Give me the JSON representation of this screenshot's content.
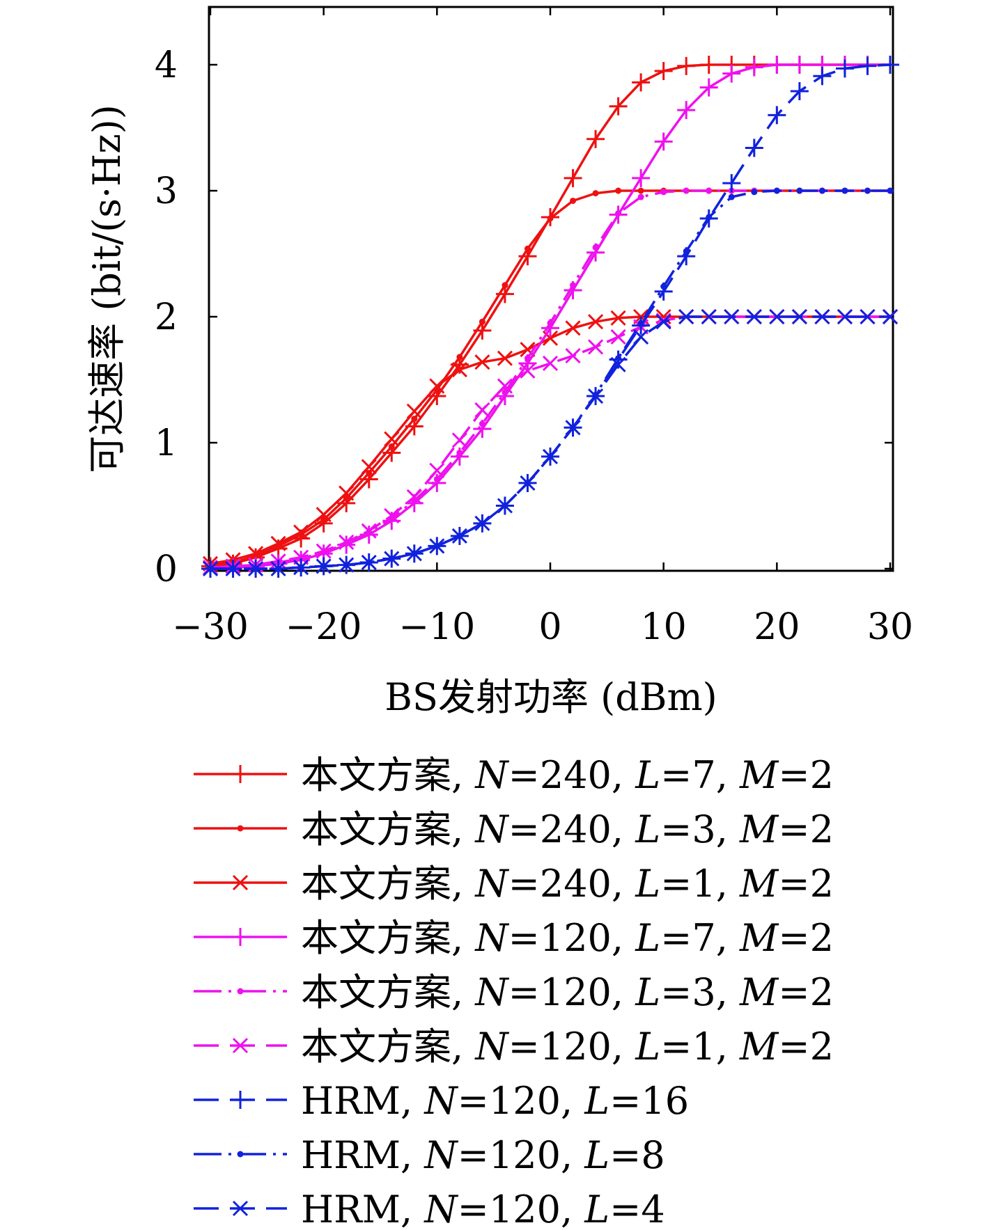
{
  "chart_data": {
    "type": "line",
    "xlabel": "BS发射功率 (dBm)",
    "ylabel": "可达速率 (bit/(s·Hz))",
    "xlim": [
      -30,
      30
    ],
    "ylim": [
      0,
      4.5
    ],
    "xticks": [
      -30,
      -20,
      -10,
      0,
      10,
      20,
      30
    ],
    "xtick_labels": [
      "−30",
      "−20",
      "−10",
      "0",
      "10",
      "20",
      "30"
    ],
    "yticks": [
      0,
      1,
      2,
      3,
      4
    ],
    "ytick_labels": [
      "0",
      "1",
      "2",
      "3",
      "4"
    ],
    "grid": false,
    "legend_position": "below",
    "x": [
      -30,
      -28,
      -26,
      -24,
      -22,
      -20,
      -18,
      -16,
      -14,
      -12,
      -10,
      -8,
      -6,
      -4,
      -2,
      0,
      2,
      4,
      6,
      8,
      10,
      12,
      14,
      16,
      18,
      20,
      22,
      24,
      26,
      28,
      30
    ],
    "series": [
      {
        "name": "本文方案, N=240, L=7, M=2",
        "color": "#ee1111",
        "dash": "solid",
        "marker": "plus",
        "values": [
          0.02,
          0.04,
          0.09,
          0.16,
          0.24,
          0.36,
          0.52,
          0.71,
          0.92,
          1.13,
          1.37,
          1.62,
          1.89,
          2.18,
          2.48,
          2.79,
          3.1,
          3.41,
          3.67,
          3.86,
          3.95,
          3.99,
          4.0,
          4.0,
          4.0,
          4.0,
          4.0,
          4.0,
          4.0,
          4.0,
          4.0
        ]
      },
      {
        "name": "本文方案, N=240, L=3, M=2",
        "color": "#ee1111",
        "dash": "solid",
        "marker": "dot",
        "values": [
          0.03,
          0.05,
          0.1,
          0.18,
          0.27,
          0.39,
          0.56,
          0.76,
          0.97,
          1.19,
          1.42,
          1.68,
          1.96,
          2.25,
          2.54,
          2.78,
          2.92,
          2.98,
          3.0,
          3.0,
          3.0,
          3.0,
          3.0,
          3.0,
          3.0,
          3.0,
          3.0,
          3.0,
          3.0,
          3.0,
          3.0
        ]
      },
      {
        "name": "本文方案, N=240, L=1, M=2",
        "color": "#ee1111",
        "dash": "solid",
        "marker": "x",
        "values": [
          0.04,
          0.07,
          0.12,
          0.2,
          0.29,
          0.43,
          0.6,
          0.81,
          1.03,
          1.25,
          1.45,
          1.58,
          1.64,
          1.67,
          1.74,
          1.83,
          1.91,
          1.96,
          1.99,
          2.0,
          2.0,
          2.0,
          2.0,
          2.0,
          2.0,
          2.0,
          2.0,
          2.0,
          2.0,
          2.0,
          2.0
        ]
      },
      {
        "name": "本文方案, N=120, L=7, M=2",
        "color": "#ee11ee",
        "dash": "solid",
        "marker": "plus",
        "values": [
          0.0,
          0.01,
          0.02,
          0.04,
          0.07,
          0.12,
          0.19,
          0.27,
          0.38,
          0.52,
          0.68,
          0.89,
          1.11,
          1.37,
          1.63,
          1.91,
          2.21,
          2.51,
          2.81,
          3.1,
          3.39,
          3.64,
          3.82,
          3.93,
          3.98,
          4.0,
          4.0,
          4.0,
          4.0,
          4.0,
          4.0
        ]
      },
      {
        "name": "本文方案, N=120, L=3, M=2",
        "color": "#ee11ee",
        "dash": "dashdot",
        "marker": "dot",
        "values": [
          0.0,
          0.01,
          0.03,
          0.05,
          0.08,
          0.13,
          0.2,
          0.29,
          0.4,
          0.54,
          0.71,
          0.92,
          1.15,
          1.4,
          1.67,
          1.95,
          2.25,
          2.55,
          2.82,
          2.95,
          2.99,
          3.0,
          3.0,
          3.0,
          3.0,
          3.0,
          3.0,
          3.0,
          3.0,
          3.0,
          3.0
        ]
      },
      {
        "name": "本文方案, N=120, L=1, M=2",
        "color": "#ee11ee",
        "dash": "dashed",
        "marker": "x",
        "values": [
          0.01,
          0.02,
          0.03,
          0.06,
          0.09,
          0.14,
          0.21,
          0.3,
          0.42,
          0.57,
          0.78,
          1.02,
          1.26,
          1.45,
          1.57,
          1.63,
          1.69,
          1.76,
          1.84,
          1.92,
          1.97,
          2.0,
          2.0,
          2.0,
          2.0,
          2.0,
          2.0,
          2.0,
          2.0,
          2.0,
          2.0
        ]
      },
      {
        "name": "HRM, N=120, L=16",
        "color": "#1122dd",
        "dash": "longdash",
        "marker": "plus",
        "values": [
          0.0,
          0.0,
          0.0,
          0.0,
          0.01,
          0.02,
          0.03,
          0.05,
          0.08,
          0.12,
          0.18,
          0.26,
          0.36,
          0.5,
          0.68,
          0.89,
          1.12,
          1.37,
          1.66,
          1.93,
          2.2,
          2.48,
          2.78,
          3.06,
          3.34,
          3.6,
          3.79,
          3.91,
          3.97,
          3.99,
          4.0
        ]
      },
      {
        "name": "HRM, N=120, L=8",
        "color": "#1122dd",
        "dash": "dashdot",
        "marker": "dot",
        "values": [
          0.0,
          0.0,
          0.0,
          0.0,
          0.01,
          0.02,
          0.03,
          0.05,
          0.08,
          0.12,
          0.18,
          0.26,
          0.36,
          0.5,
          0.68,
          0.89,
          1.12,
          1.38,
          1.67,
          1.95,
          2.24,
          2.52,
          2.79,
          2.95,
          2.99,
          3.0,
          3.0,
          3.0,
          3.0,
          3.0,
          3.0
        ]
      },
      {
        "name": "HRM, N=120, L=4",
        "color": "#1122dd",
        "dash": "longdash",
        "marker": "x",
        "values": [
          0.0,
          0.0,
          0.0,
          0.0,
          0.01,
          0.02,
          0.03,
          0.05,
          0.08,
          0.12,
          0.18,
          0.26,
          0.36,
          0.5,
          0.68,
          0.89,
          1.12,
          1.37,
          1.62,
          1.84,
          1.96,
          2.0,
          2.0,
          2.0,
          2.0,
          2.0,
          2.0,
          2.0,
          2.0,
          2.0,
          2.0
        ]
      }
    ],
    "legend_entries": [
      {
        "prefix": "本文方案, ",
        "parts": [
          {
            "v": "N",
            "eq": "=240, "
          },
          {
            "v": "L",
            "eq": "=7, "
          },
          {
            "v": "M",
            "eq": "=2"
          }
        ]
      },
      {
        "prefix": "本文方案, ",
        "parts": [
          {
            "v": "N",
            "eq": "=240, "
          },
          {
            "v": "L",
            "eq": "=3, "
          },
          {
            "v": "M",
            "eq": "=2"
          }
        ]
      },
      {
        "prefix": "本文方案, ",
        "parts": [
          {
            "v": "N",
            "eq": "=240, "
          },
          {
            "v": "L",
            "eq": "=1, "
          },
          {
            "v": "M",
            "eq": "=2"
          }
        ]
      },
      {
        "prefix": "本文方案, ",
        "parts": [
          {
            "v": "N",
            "eq": "=120, "
          },
          {
            "v": "L",
            "eq": "=7, "
          },
          {
            "v": "M",
            "eq": "=2"
          }
        ]
      },
      {
        "prefix": "本文方案, ",
        "parts": [
          {
            "v": "N",
            "eq": "=120, "
          },
          {
            "v": "L",
            "eq": "=3, "
          },
          {
            "v": "M",
            "eq": "=2"
          }
        ]
      },
      {
        "prefix": "本文方案, ",
        "parts": [
          {
            "v": "N",
            "eq": "=120, "
          },
          {
            "v": "L",
            "eq": "=1, "
          },
          {
            "v": "M",
            "eq": "=2"
          }
        ]
      },
      {
        "prefix": "HRM, ",
        "parts": [
          {
            "v": "N",
            "eq": "=120, "
          },
          {
            "v": "L",
            "eq": "=16"
          }
        ]
      },
      {
        "prefix": "HRM, ",
        "parts": [
          {
            "v": "N",
            "eq": "=120, "
          },
          {
            "v": "L",
            "eq": "=8"
          }
        ]
      },
      {
        "prefix": "HRM, ",
        "parts": [
          {
            "v": "N",
            "eq": "=120, "
          },
          {
            "v": "L",
            "eq": "=4"
          }
        ]
      }
    ]
  }
}
